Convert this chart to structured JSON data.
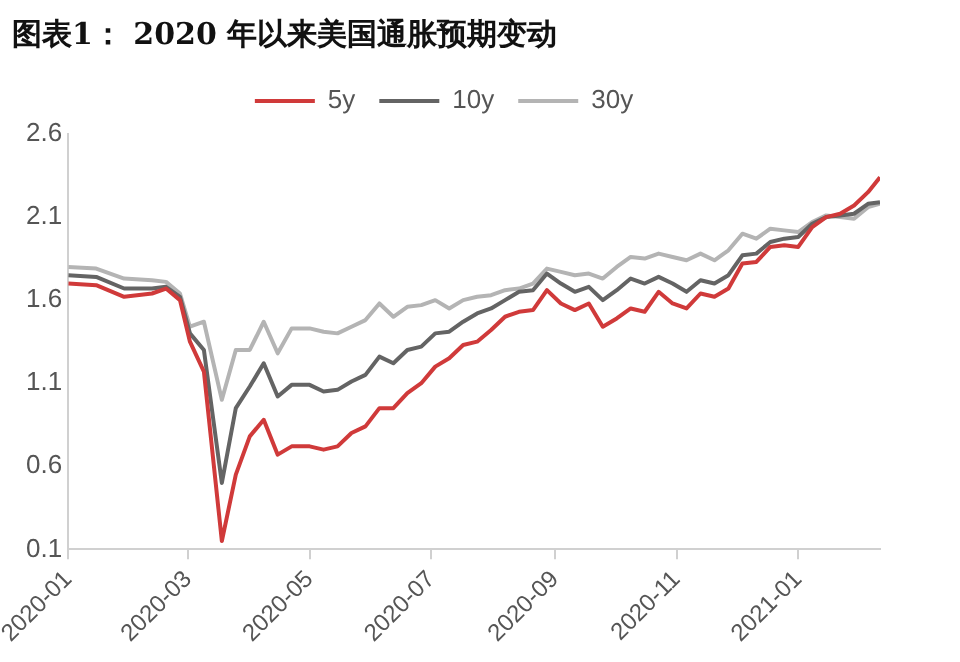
{
  "chart_data": {
    "type": "line",
    "title": "图表1： 2020 年以来美国通胀预期变动",
    "x": [
      "2020-01-01",
      "2020-01-15",
      "2020-01-29",
      "2020-02-12",
      "2020-02-19",
      "2020-02-26",
      "2020-03-02",
      "2020-03-09",
      "2020-03-18",
      "2020-03-25",
      "2020-04-01",
      "2020-04-08",
      "2020-04-15",
      "2020-04-22",
      "2020-05-01",
      "2020-05-08",
      "2020-05-15",
      "2020-05-22",
      "2020-05-29",
      "2020-06-05",
      "2020-06-12",
      "2020-06-19",
      "2020-06-26",
      "2020-07-03",
      "2020-07-10",
      "2020-07-17",
      "2020-07-24",
      "2020-07-31",
      "2020-08-07",
      "2020-08-14",
      "2020-08-21",
      "2020-08-28",
      "2020-09-04",
      "2020-09-11",
      "2020-09-18",
      "2020-09-25",
      "2020-10-02",
      "2020-10-09",
      "2020-10-16",
      "2020-10-23",
      "2020-10-30",
      "2020-11-06",
      "2020-11-13",
      "2020-11-20",
      "2020-11-27",
      "2020-12-04",
      "2020-12-11",
      "2020-12-18",
      "2020-12-25",
      "2021-01-01",
      "2021-01-08",
      "2021-01-15",
      "2021-01-22",
      "2021-01-29",
      "2021-02-05",
      "2021-02-11"
    ],
    "series": [
      {
        "name": "5y",
        "color": "#d03a3a",
        "values": [
          1.7,
          1.69,
          1.62,
          1.64,
          1.67,
          1.6,
          1.35,
          1.17,
          0.15,
          0.55,
          0.78,
          0.88,
          0.67,
          0.72,
          0.72,
          0.7,
          0.72,
          0.8,
          0.84,
          0.95,
          0.95,
          1.04,
          1.1,
          1.2,
          1.25,
          1.33,
          1.35,
          1.42,
          1.5,
          1.53,
          1.54,
          1.66,
          1.58,
          1.54,
          1.58,
          1.44,
          1.49,
          1.55,
          1.53,
          1.65,
          1.58,
          1.55,
          1.64,
          1.62,
          1.67,
          1.82,
          1.83,
          1.92,
          1.93,
          1.92,
          2.04,
          2.1,
          2.12,
          2.17,
          2.25,
          2.34
        ]
      },
      {
        "name": "10y",
        "color": "#646464",
        "values": [
          1.75,
          1.74,
          1.67,
          1.67,
          1.68,
          1.62,
          1.4,
          1.3,
          0.5,
          0.95,
          1.08,
          1.22,
          1.02,
          1.09,
          1.09,
          1.05,
          1.06,
          1.11,
          1.15,
          1.26,
          1.22,
          1.3,
          1.32,
          1.4,
          1.41,
          1.47,
          1.52,
          1.55,
          1.6,
          1.65,
          1.66,
          1.76,
          1.7,
          1.65,
          1.68,
          1.6,
          1.66,
          1.73,
          1.7,
          1.74,
          1.7,
          1.65,
          1.72,
          1.7,
          1.75,
          1.87,
          1.88,
          1.95,
          1.97,
          1.98,
          2.06,
          2.1,
          2.11,
          2.12,
          2.18,
          2.19
        ]
      },
      {
        "name": "30y",
        "color": "#b4b4b4",
        "values": [
          1.8,
          1.79,
          1.73,
          1.72,
          1.71,
          1.64,
          1.44,
          1.47,
          1.0,
          1.3,
          1.3,
          1.47,
          1.28,
          1.43,
          1.43,
          1.41,
          1.4,
          1.44,
          1.48,
          1.58,
          1.5,
          1.56,
          1.57,
          1.6,
          1.55,
          1.6,
          1.62,
          1.63,
          1.66,
          1.67,
          1.7,
          1.79,
          1.77,
          1.75,
          1.76,
          1.73,
          1.8,
          1.86,
          1.85,
          1.88,
          1.86,
          1.84,
          1.88,
          1.84,
          1.9,
          2.0,
          1.97,
          2.03,
          2.02,
          2.01,
          2.07,
          2.11,
          2.1,
          2.09,
          2.16,
          2.18
        ]
      }
    ],
    "xlim": [
      "2020-01-01",
      "2021-02-11"
    ],
    "xticks": [
      "2020-01",
      "2020-03",
      "2020-05",
      "2020-07",
      "2020-09",
      "2020-11",
      "2021-01"
    ],
    "ylim": [
      0.1,
      2.6
    ],
    "yticks": [
      0.1,
      0.6,
      1.1,
      1.6,
      2.1,
      2.6
    ],
    "grid": false,
    "legend": "top",
    "marker": "none",
    "line_style": "solid"
  }
}
